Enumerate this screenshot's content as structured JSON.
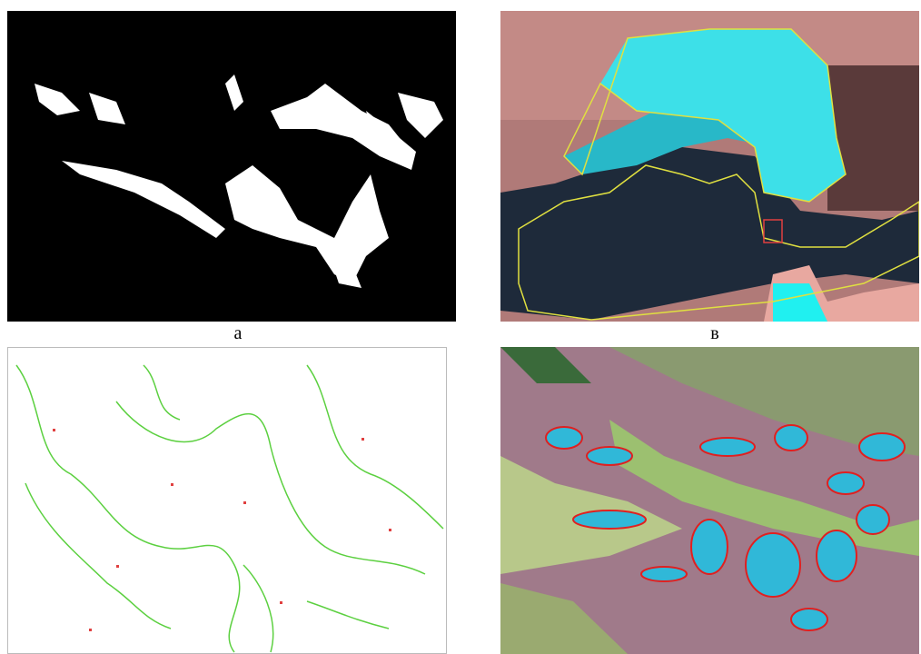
{
  "panels": [
    {
      "label": "а"
    },
    {
      "label": "в"
    }
  ]
}
